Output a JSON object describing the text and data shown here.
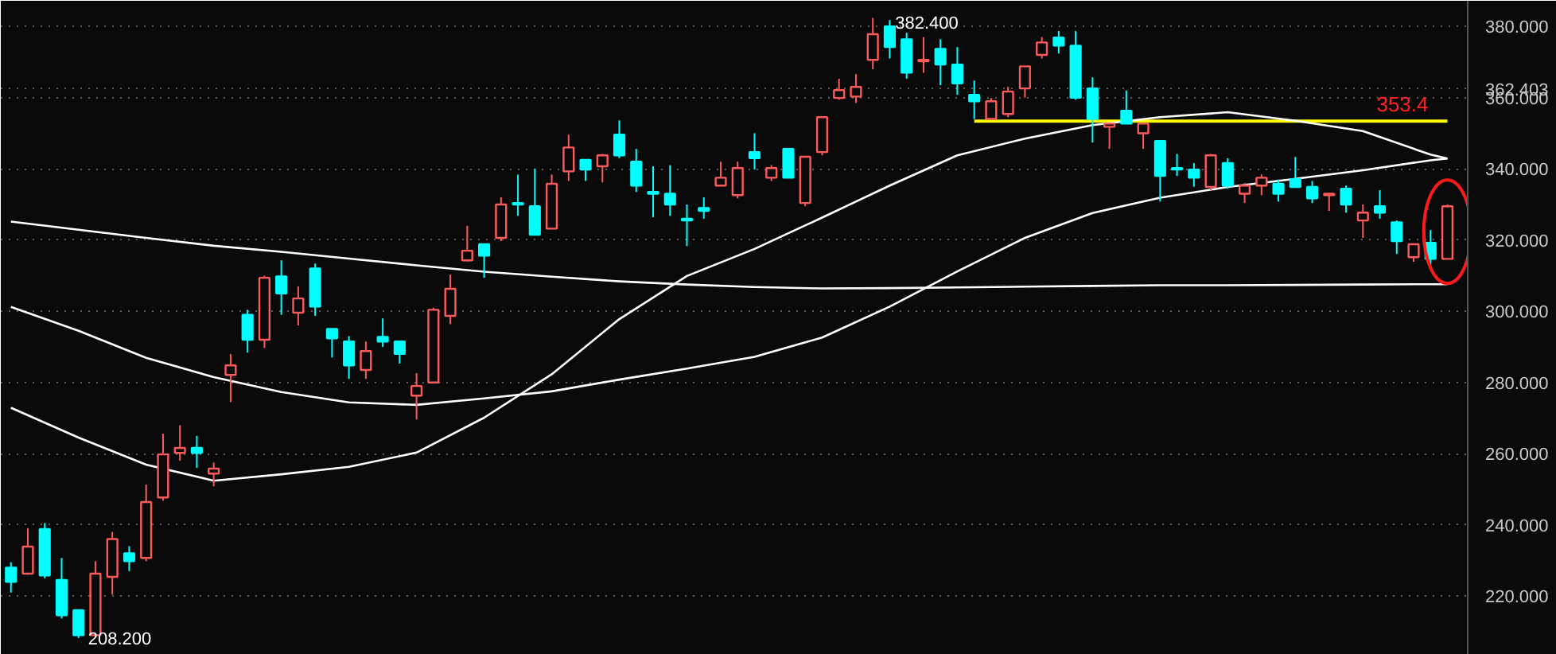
{
  "chart_data": {
    "type": "candlestick",
    "categories": [
      null,
      null,
      null,
      null,
      null,
      null,
      null,
      null,
      null,
      null,
      null,
      null,
      null,
      null,
      null,
      null,
      null,
      null,
      null,
      null,
      null,
      null,
      null,
      null,
      null,
      null,
      null,
      null,
      null,
      null,
      null,
      null,
      null,
      null,
      null,
      null,
      null,
      null,
      null,
      null,
      null,
      null,
      null,
      null,
      null,
      null,
      null,
      null,
      null,
      null,
      null,
      null,
      null,
      null,
      null,
      null,
      null,
      null,
      null,
      null,
      null,
      null,
      null,
      null,
      null,
      null,
      null,
      null,
      null,
      null,
      null,
      null,
      null,
      null,
      null,
      null,
      null,
      null,
      null,
      null,
      null,
      null,
      null,
      null,
      null,
      null
    ],
    "ylim": [
      203.5,
      387.2
    ],
    "yticks": [
      {
        "value": 220,
        "label": "220.000"
      },
      {
        "value": 240,
        "label": "240.000"
      },
      {
        "value": 260,
        "label": "260.000"
      },
      {
        "value": 280,
        "label": "280.000"
      },
      {
        "value": 300,
        "label": "300.000"
      },
      {
        "value": 320,
        "label": "320.000"
      },
      {
        "value": 340,
        "label": "340.000"
      },
      {
        "value": 360,
        "label": "360.000"
      },
      {
        "value": 362.403,
        "label": "362.403"
      },
      {
        "value": 380,
        "label": "380.000"
      }
    ],
    "grid": "y",
    "tick_labels": "y",
    "series": [
      {
        "type": "candlestick",
        "ohlc": [
          [
            228,
            229.5,
            221,
            224
          ],
          [
            226.3,
            239,
            226,
            233.9
          ],
          [
            238.8,
            240.5,
            225,
            225.8
          ],
          [
            224.5,
            230.7,
            213.7,
            214.6
          ],
          [
            216,
            216,
            208.2,
            209
          ],
          [
            209,
            229.8,
            208.5,
            226.3
          ],
          [
            225.4,
            238,
            220.4,
            236
          ],
          [
            232,
            234,
            227,
            229.8
          ],
          [
            230.7,
            251.3,
            229.8,
            246.4
          ],
          [
            247.7,
            265.6,
            246.8,
            259.8
          ],
          [
            260.2,
            268,
            258,
            261.6
          ],
          [
            261.6,
            265,
            256,
            260.2
          ],
          [
            254.4,
            257.5,
            250.8,
            255.8
          ],
          [
            282.1,
            288,
            274.5,
            284.8
          ],
          [
            299,
            300.4,
            288.4,
            292
          ],
          [
            292,
            310,
            289.7,
            309.4
          ],
          [
            309.8,
            314.3,
            299,
            305
          ],
          [
            299.6,
            307,
            296,
            303.6
          ],
          [
            312,
            313.4,
            298.7,
            301.3
          ],
          [
            295,
            295,
            287,
            292.4
          ],
          [
            291.5,
            293,
            281,
            284.8
          ],
          [
            283.5,
            291.5,
            281,
            288.8
          ],
          [
            292.8,
            298,
            290,
            291.5
          ],
          [
            291.5,
            291.5,
            285.3,
            288
          ],
          [
            276.3,
            282.6,
            269.6,
            279
          ],
          [
            280,
            301,
            279.9,
            300.4
          ],
          [
            298.7,
            310.3,
            296.4,
            306.3
          ],
          [
            314.3,
            324,
            314,
            317
          ],
          [
            318.8,
            319,
            309.4,
            315.6
          ],
          [
            320.6,
            332,
            319.7,
            330
          ],
          [
            330.4,
            338.4,
            326.8,
            330
          ],
          [
            329.5,
            340,
            321.5,
            321.5
          ],
          [
            323.2,
            338.4,
            323,
            335.8
          ],
          [
            339.3,
            349.6,
            336.6,
            346
          ],
          [
            342.5,
            342.5,
            336.6,
            339.8
          ],
          [
            340.7,
            344.2,
            336.2,
            343.8
          ],
          [
            349.6,
            353.6,
            343,
            343.8
          ],
          [
            342,
            345.6,
            333.5,
            335.3
          ],
          [
            333.5,
            340.7,
            326.4,
            333
          ],
          [
            333,
            341,
            326.8,
            330
          ],
          [
            326,
            330,
            318.3,
            325.5
          ],
          [
            329,
            332,
            326,
            328.2
          ],
          [
            335.3,
            342,
            335.3,
            337.5
          ],
          [
            332.6,
            342,
            331.7,
            340.2
          ],
          [
            344.7,
            350,
            339.8,
            343
          ],
          [
            337.5,
            341,
            336.6,
            340.2
          ],
          [
            345.6,
            345.6,
            337.5,
            337.5
          ],
          [
            330.4,
            343.4,
            329.5,
            343.4
          ],
          [
            344.7,
            354.5,
            343.8,
            354.5
          ],
          [
            359.9,
            365.3,
            359.4,
            362.1
          ],
          [
            360.3,
            366.6,
            358.5,
            363
          ],
          [
            370.6,
            382.4,
            368,
            377.8
          ],
          [
            380,
            381.8,
            371,
            374.2
          ],
          [
            376.4,
            378.2,
            365.3,
            367
          ],
          [
            370.2,
            377,
            367,
            370.6
          ],
          [
            373.7,
            376.4,
            363.5,
            369.3
          ],
          [
            369.3,
            374.2,
            360.8,
            364
          ],
          [
            360.8,
            364.8,
            354,
            359
          ],
          [
            354,
            359.9,
            354,
            359
          ],
          [
            355.4,
            363,
            354.5,
            361.7
          ],
          [
            362.6,
            368.8,
            360,
            368.8
          ],
          [
            372,
            377,
            371,
            375.5
          ],
          [
            376.9,
            378.7,
            372.4,
            374.6
          ],
          [
            374.6,
            378.7,
            359.4,
            360
          ],
          [
            362.6,
            365.7,
            347.4,
            354
          ],
          [
            351.8,
            353,
            345.6,
            352.7
          ],
          [
            356.3,
            362,
            352.7,
            352.7
          ],
          [
            350,
            353,
            345.6,
            352.7
          ],
          [
            347.8,
            347.8,
            330.8,
            338
          ],
          [
            340.2,
            344.2,
            338,
            339.8
          ],
          [
            339.8,
            341.6,
            335,
            337.5
          ],
          [
            334.9,
            344.2,
            334,
            343.8
          ],
          [
            341.6,
            343,
            334.4,
            335.3
          ],
          [
            333,
            336,
            330.4,
            335.3
          ],
          [
            335.3,
            338.4,
            332.6,
            337.5
          ],
          [
            335.8,
            337,
            330.8,
            333
          ],
          [
            337.1,
            343.3,
            334.9,
            334.9
          ],
          [
            334.9,
            336.6,
            330.4,
            331.7
          ],
          [
            332.6,
            333,
            328.2,
            333
          ],
          [
            334.4,
            335.3,
            327.7,
            330
          ],
          [
            325.5,
            330,
            320.6,
            327.7
          ],
          [
            329.5,
            334,
            326,
            327.7
          ],
          [
            325,
            325.5,
            316.1,
            319.7
          ],
          [
            315.2,
            319,
            313.9,
            318.8
          ],
          [
            319.2,
            322.8,
            312.5,
            314.7
          ],
          [
            314.7,
            330,
            314.7,
            329.5
          ]
        ],
        "colors": [
          "#00ffff",
          "#ff5a5a",
          "#00ffff",
          "#00ffff",
          "#00ffff",
          "#ff5a5a",
          "#ff5a5a",
          "#00ffff",
          "#ff5a5a",
          "#ff5a5a",
          "#ff5a5a",
          "#00ffff",
          "#ff5a5a",
          "#ff5a5a",
          "#00ffff",
          "#ff5a5a",
          "#00ffff",
          "#ff5a5a",
          "#00ffff",
          "#00ffff",
          "#00ffff",
          "#ff5a5a",
          "#00ffff",
          "#00ffff",
          "#ff5a5a",
          "#ff5a5a",
          "#ff5a5a",
          "#ff5a5a",
          "#00ffff",
          "#ff5a5a",
          "#00ffff",
          "#00ffff",
          "#ff5a5a",
          "#ff5a5a",
          "#00ffff",
          "#ff5a5a",
          "#00ffff",
          "#00ffff",
          "#00ffff",
          "#00ffff",
          "#00ffff",
          "#00ffff",
          "#ff5a5a",
          "#ff5a5a",
          "#00ffff",
          "#ff5a5a",
          "#00ffff",
          "#ff5a5a",
          "#ff5a5a",
          "#ff5a5a",
          "#ff5a5a",
          "#ff5a5a",
          "#00ffff",
          "#00ffff",
          "#ff5a5a",
          "#00ffff",
          "#00ffff",
          "#00ffff",
          "#ff5a5a",
          "#ff5a5a",
          "#ff5a5a",
          "#ff5a5a",
          "#00ffff",
          "#00ffff",
          "#00ffff",
          "#ff5a5a",
          "#00ffff",
          "#ff5a5a",
          "#00ffff",
          "#00ffff",
          "#00ffff",
          "#ff5a5a",
          "#00ffff",
          "#ff5a5a",
          "#ff5a5a",
          "#00ffff",
          "#00ffff",
          "#00ffff",
          "#ff5a5a",
          "#00ffff",
          "#ff5a5a",
          "#00ffff",
          "#00ffff",
          "#ff5a5a",
          "#00ffff",
          "#ff5a5a"
        ]
      },
      {
        "type": "line",
        "color": "#ffffff",
        "values": [
          325.2,
          null,
          null,
          null,
          322.9,
          null,
          null,
          null,
          320.6,
          null,
          null,
          null,
          318.4,
          null,
          null,
          null,
          316.7,
          null,
          null,
          null,
          314.8,
          null,
          null,
          null,
          312.9,
          null,
          null,
          null,
          311.1,
          null,
          null,
          null,
          309.7,
          null,
          null,
          null,
          308.4,
          null,
          null,
          null,
          307.5,
          null,
          null,
          null,
          306.8,
          null,
          null,
          null,
          306.4,
          null,
          null,
          null,
          306.5,
          null,
          null,
          null,
          306.7,
          null,
          null,
          null,
          306.9,
          null,
          null,
          null,
          307.1,
          null,
          null,
          null,
          307.3,
          null,
          null,
          null,
          307.3,
          null,
          null,
          null,
          307.4,
          null,
          null,
          null,
          307.5,
          null,
          null,
          null,
          307.6,
          307.6
        ]
      },
      {
        "type": "line",
        "color": "#ffffff",
        "values": [
          301.2,
          null,
          null,
          null,
          294.5,
          null,
          null,
          null,
          286.9,
          null,
          null,
          null,
          281.5,
          null,
          null,
          null,
          277.3,
          null,
          null,
          null,
          274.4,
          null,
          null,
          null,
          273.7,
          null,
          null,
          null,
          275.5,
          null,
          null,
          null,
          277.5,
          null,
          null,
          null,
          280.8,
          null,
          null,
          null,
          283.9,
          null,
          null,
          null,
          287.2,
          null,
          null,
          null,
          292.6,
          null,
          null,
          null,
          301.3,
          null,
          null,
          null,
          311.2,
          null,
          null,
          null,
          320.6,
          null,
          null,
          null,
          327.6,
          null,
          null,
          null,
          331.9,
          null,
          null,
          null,
          334.9,
          null,
          null,
          null,
          337.2,
          null,
          null,
          null,
          339.6,
          null,
          null,
          null,
          342.4,
          342.9
        ]
      },
      {
        "type": "line",
        "color": "#ffffff",
        "values": [
          272.9,
          null,
          null,
          null,
          264.5,
          null,
          null,
          null,
          256.9,
          null,
          null,
          null,
          252.4,
          null,
          null,
          null,
          254.2,
          null,
          null,
          null,
          256.3,
          null,
          null,
          null,
          260.3,
          null,
          null,
          null,
          270.1,
          null,
          null,
          null,
          282.3,
          null,
          null,
          null,
          297.8,
          null,
          null,
          null,
          309.9,
          null,
          null,
          null,
          317.5,
          null,
          null,
          null,
          326.3,
          null,
          null,
          null,
          335.3,
          null,
          null,
          null,
          343.8,
          null,
          null,
          null,
          348.5,
          null,
          null,
          null,
          352.3,
          null,
          null,
          null,
          354.5,
          null,
          null,
          null,
          355.9,
          null,
          null,
          null,
          353.5,
          null,
          null,
          null,
          350.6,
          null,
          null,
          null,
          344.0,
          342.9
        ]
      },
      {
        "type": "line",
        "color": "#ffff00",
        "values": [
          null,
          null,
          null,
          null,
          null,
          null,
          null,
          null,
          null,
          null,
          null,
          null,
          null,
          null,
          null,
          null,
          null,
          null,
          null,
          null,
          null,
          null,
          null,
          null,
          null,
          null,
          null,
          null,
          null,
          null,
          null,
          null,
          null,
          null,
          null,
          null,
          null,
          null,
          null,
          null,
          null,
          null,
          null,
          null,
          null,
          null,
          null,
          null,
          null,
          null,
          null,
          null,
          null,
          null,
          null,
          null,
          null,
          353.4,
          353.4,
          353.4,
          353.4,
          353.4,
          353.4,
          353.4,
          353.4,
          353.4,
          353.4,
          353.4,
          353.4,
          353.4,
          353.4,
          353.4,
          353.4,
          353.4,
          353.4,
          353.4,
          353.4,
          353.4,
          353.4,
          353.4,
          353.4,
          353.4,
          353.4,
          353.4,
          353.4,
          353.4
        ]
      }
    ],
    "annotations": [
      "382.400",
      "208.200",
      {
        "text": "353.4",
        "y": 353.4
      }
    ]
  }
}
